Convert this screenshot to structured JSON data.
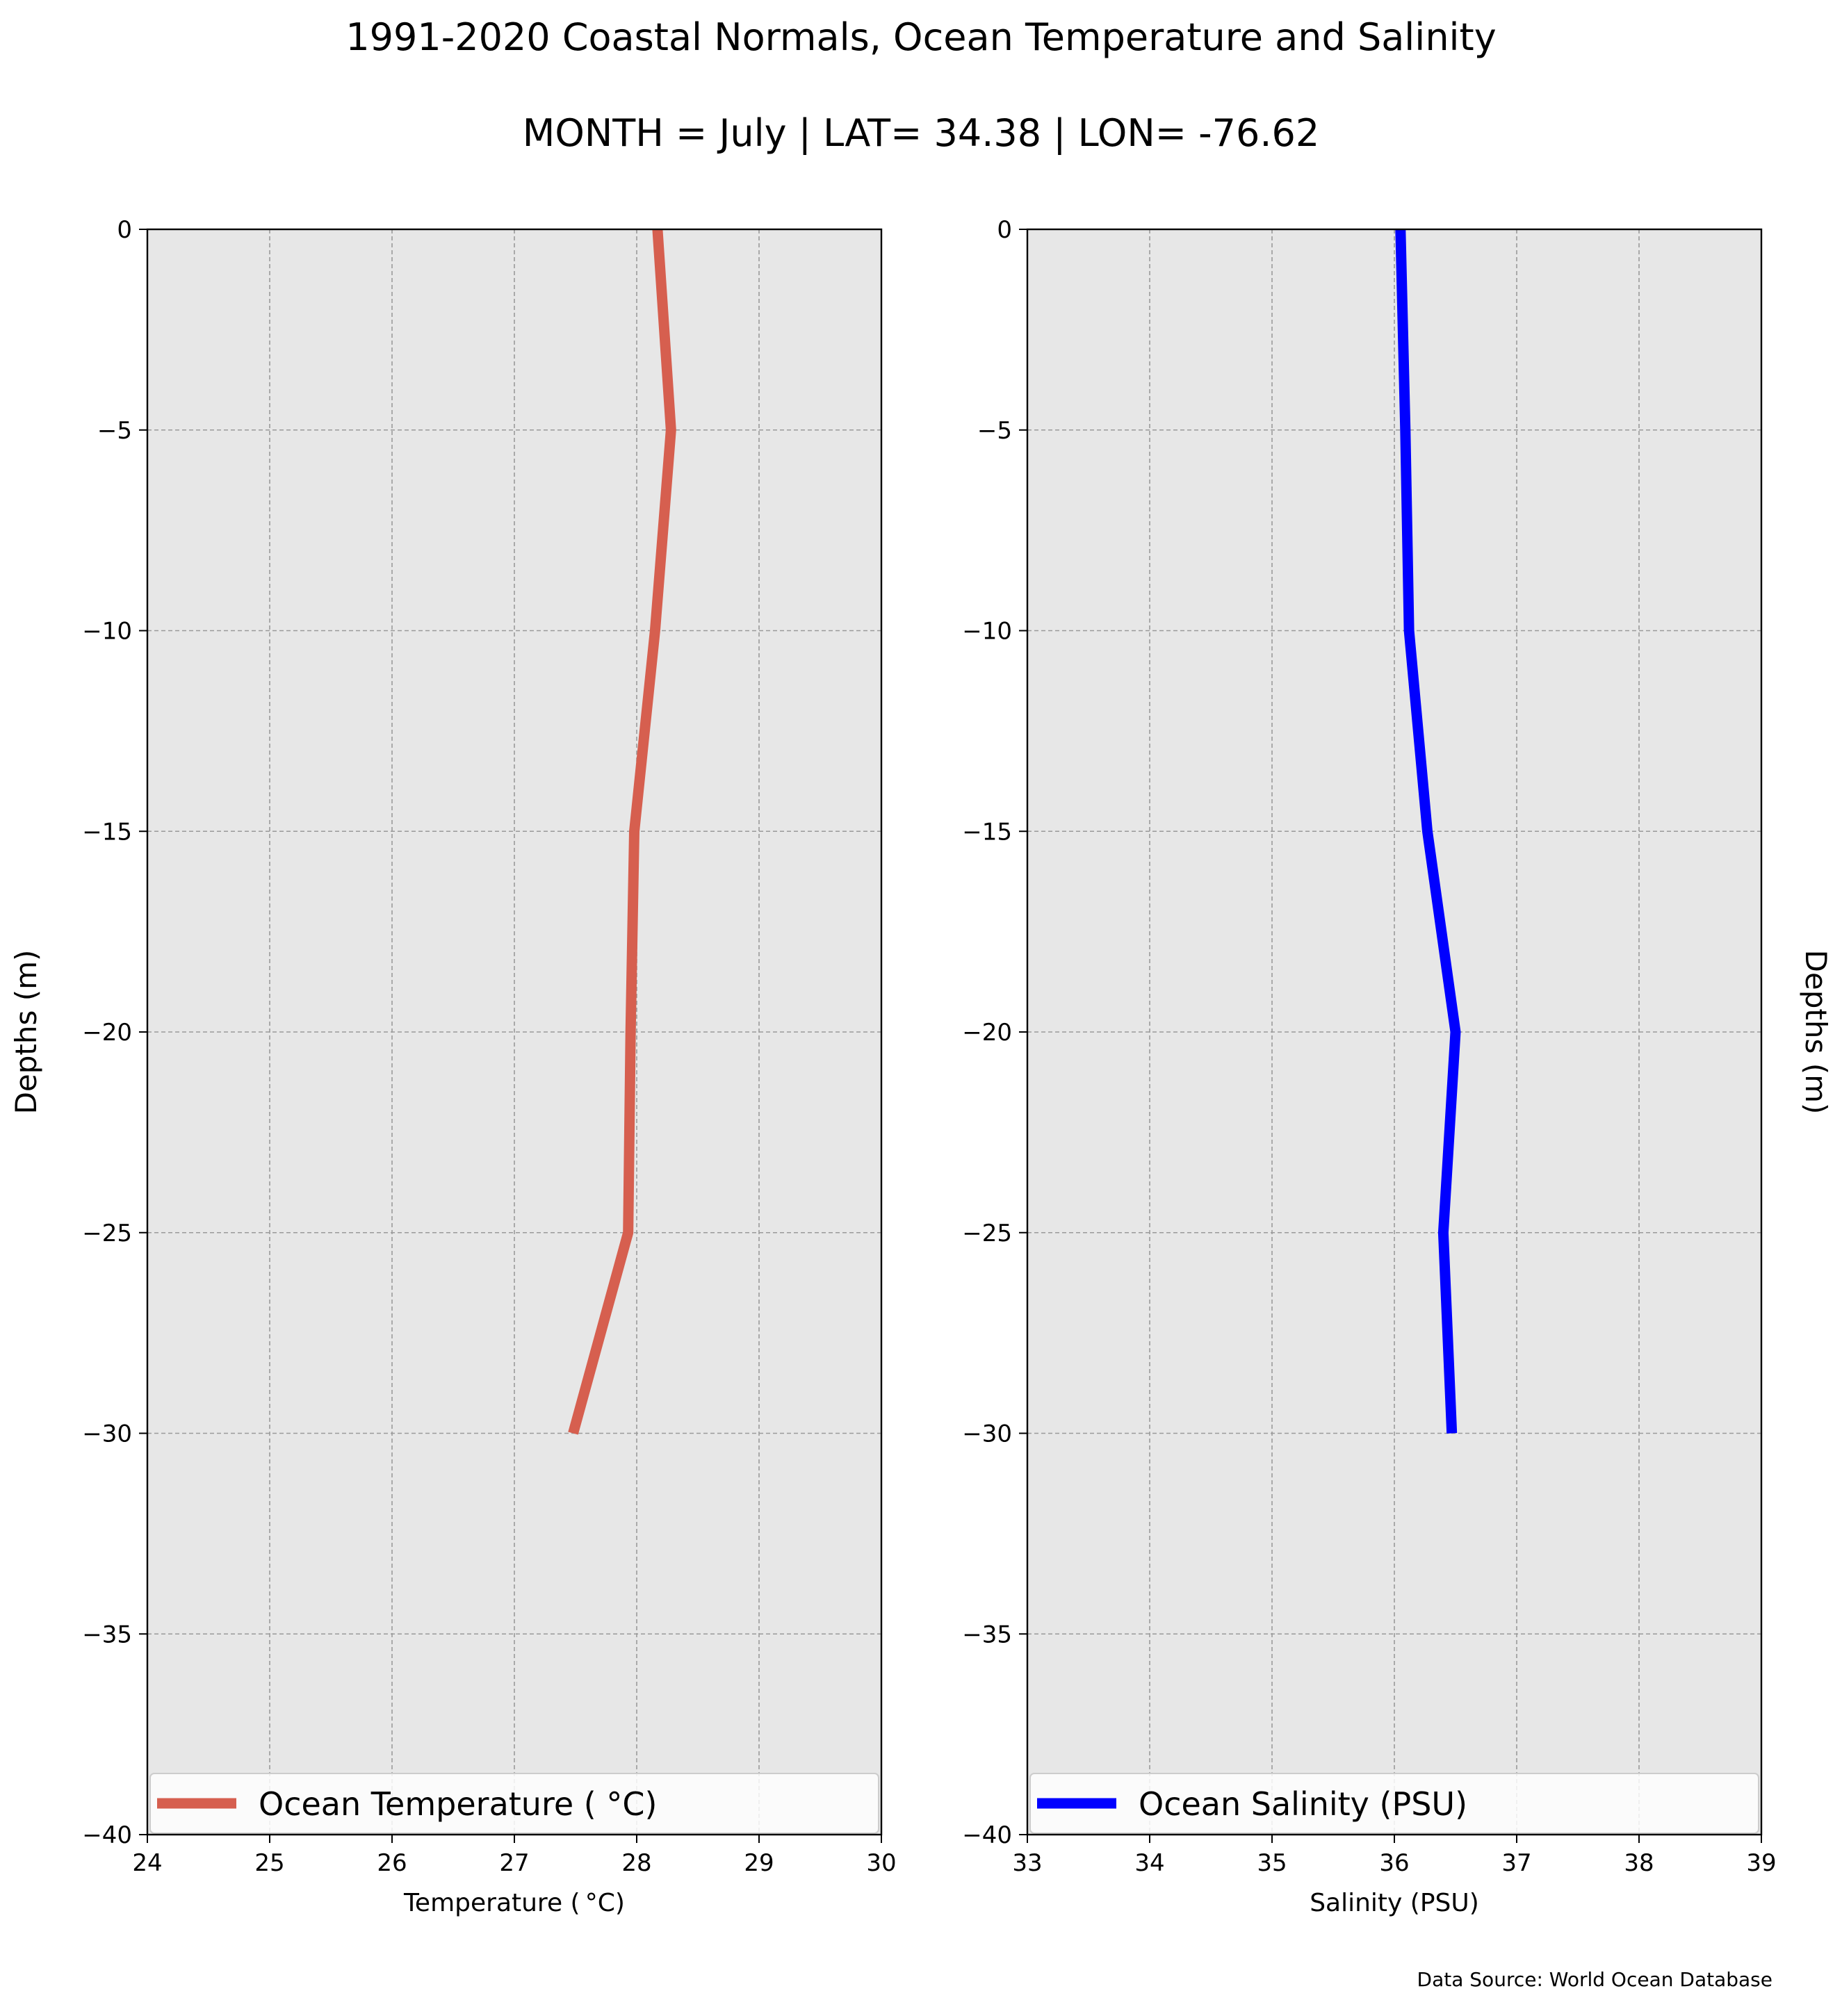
{
  "title": "1991-2020 Coastal Normals, Ocean Temperature and Salinity",
  "subtitle": "MONTH = July | LAT= 34.38 | LON= -76.62",
  "source": "Data Source: World Ocean Database",
  "chart_data": [
    {
      "type": "line",
      "xlabel": "Temperature ($^\\circ$C)",
      "xlabel_display": "Temperature ( °C)",
      "ylabel": "Depths (m)",
      "xlim": [
        24,
        30
      ],
      "ylim": [
        -40,
        0
      ],
      "xticks": [
        24,
        25,
        26,
        27,
        28,
        29,
        30
      ],
      "yticks": [
        0,
        -5,
        -10,
        -15,
        -20,
        -25,
        -30,
        -35,
        -40
      ],
      "grid": true,
      "legend": "lower-center",
      "series": [
        {
          "name": "Ocean Temperature ( °C)",
          "color": "#d65f4f",
          "x": [
            28.17,
            28.28,
            28.15,
            27.98,
            27.95,
            27.93,
            27.48
          ],
          "y": [
            0,
            -5,
            -10,
            -15,
            -20,
            -25,
            -30
          ]
        }
      ]
    },
    {
      "type": "line",
      "xlabel": "Salinity (PSU)",
      "ylabel": "Depths (m)",
      "xlim": [
        33,
        39
      ],
      "ylim": [
        -40,
        0
      ],
      "xticks": [
        33,
        34,
        35,
        36,
        37,
        38,
        39
      ],
      "yticks": [
        0,
        -5,
        -10,
        -15,
        -20,
        -25,
        -30,
        -35,
        -40
      ],
      "grid": true,
      "legend": "lower-center",
      "series": [
        {
          "name": "Ocean Salinity (PSU)",
          "color": "#0000ff",
          "x": [
            36.05,
            36.09,
            36.12,
            36.27,
            36.5,
            36.4,
            36.47
          ],
          "y": [
            0,
            -5,
            -10,
            -15,
            -20,
            -25,
            -30
          ]
        }
      ]
    }
  ]
}
